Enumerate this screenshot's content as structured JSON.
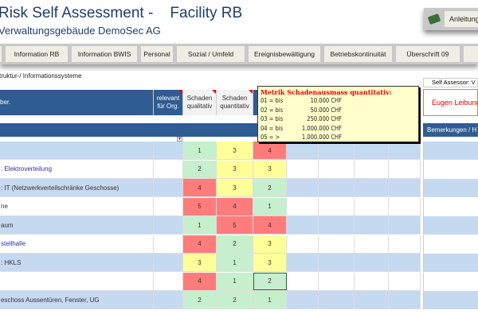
{
  "header": {
    "title": "Risk Self Assessment -    Facility RB",
    "subtitle": "Verwaltungsgebäude DemoSec AG",
    "help_button": "Anleitung"
  },
  "tabs": [
    "Information  RB",
    "Information  BWIS",
    "Personal",
    "Sozial / Umfeld",
    "Ereignisbewältigung",
    "Betriebskontinuität",
    "Überschrift 09"
  ],
  "breadcrumb": "truktur-/ Informationssysteme",
  "self_assessor": {
    "label": "Self Assessor: V",
    "name": "Eugen Leibund"
  },
  "columns": {
    "name": "ber.",
    "relevant": "relevant für Org.",
    "qual": "Schaden qualitativ",
    "quant": "Schaden quantitativ",
    "remarks": "Bemerkungen / H"
  },
  "tooltip": {
    "title": "Metrik Schadenausmass quantitativ:",
    "lines": [
      [
        "01  =  bis",
        "10.000 CHF"
      ],
      [
        "02  =  bis",
        "50.000 CHF"
      ],
      [
        "03  =  bis",
        "250.000 CHF"
      ],
      [
        "04  =  bis",
        "1.000.000 CHF"
      ],
      [
        "05  =  >",
        "1.000.000 CHF"
      ]
    ]
  },
  "colors": {
    "green": "#c6efce",
    "yellow": "#ffff99",
    "red": "#ff7c7c",
    "header_blue": "#2f5c93",
    "row_blue": "#c5d9f1"
  },
  "rows": [
    {
      "name": "",
      "qual": "1",
      "quant": "3",
      "c3": "4"
    },
    {
      "name": ": Elektroverteilung",
      "qual": "2",
      "quant": "3",
      "c3": "3"
    },
    {
      "name": ": IT (Netzwerkverteilschränke Geschosse)",
      "qual": "4",
      "quant": "3",
      "c3": "2"
    },
    {
      "name": "ne",
      "qual": "5",
      "quant": "4",
      "c3": "1"
    },
    {
      "name": "aum",
      "qual": "1",
      "quant": "5",
      "c3": "4"
    },
    {
      "name": "stellhalle",
      "qual": "4",
      "quant": "2",
      "c3": "3"
    },
    {
      "name": ": HKLS",
      "qual": "3",
      "quant": "1",
      "c3": "3"
    },
    {
      "name": "",
      "qual": "4",
      "quant": "1",
      "c3": "2"
    },
    {
      "name": "eschoss Aussentüren, Fenster, UG",
      "qual": "2",
      "quant": "2",
      "c3": "1"
    }
  ]
}
